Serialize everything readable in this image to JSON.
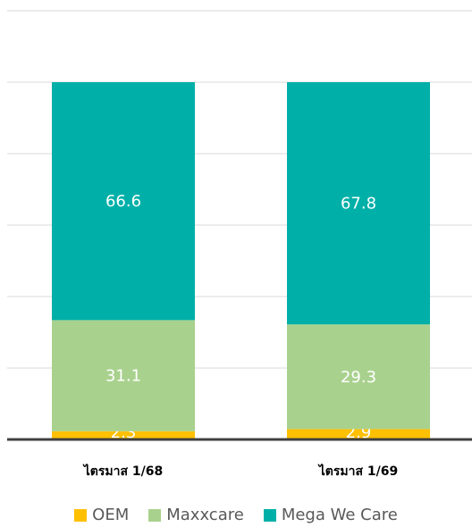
{
  "chart_data": {
    "type": "bar",
    "stacked": true,
    "categories": [
      "ไตรมาส 1/68",
      "ไตรมาส 1/69"
    ],
    "series": [
      {
        "name": "OEM",
        "values": [
          2.3,
          2.9
        ],
        "color": "#FFC000"
      },
      {
        "name": "Maxxcare",
        "values": [
          31.1,
          29.3
        ],
        "color": "#A9D18E"
      },
      {
        "name": "Mega We Care",
        "values": [
          66.6,
          67.8
        ],
        "color": "#00B0A8"
      }
    ],
    "title": "",
    "xlabel": "",
    "ylabel": "",
    "ylim": [
      0,
      120
    ],
    "grid": true,
    "legend_position": "bottom"
  }
}
